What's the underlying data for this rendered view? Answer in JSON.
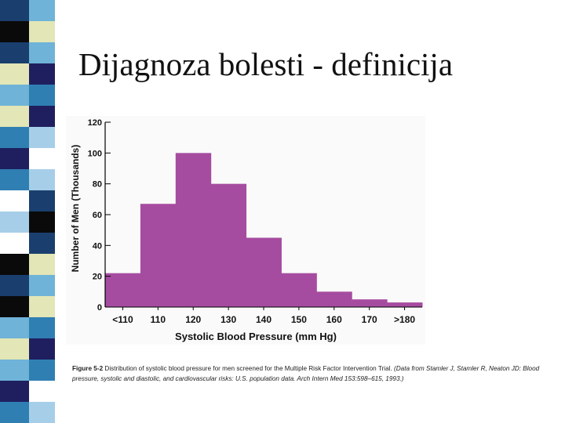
{
  "slide": {
    "title": "Dijagnoza bolesti - definicija",
    "strip_palette": [
      "#1a3f6e",
      "#e3e6b6",
      "#2f7fb3",
      "#ffffff",
      "#0a0a0a",
      "#6fb3d8",
      "#1f1f5f",
      "#a7cee8"
    ]
  },
  "chart_data": {
    "type": "bar",
    "categories": [
      "<110",
      "110",
      "120",
      "130",
      "140",
      "150",
      "160",
      "170",
      ">180"
    ],
    "values": [
      22,
      67,
      100,
      80,
      45,
      22,
      10,
      5,
      3
    ],
    "ylabel": "Number of Men (Thousands)",
    "xlabel": "Systolic Blood Pressure (mm Hg)",
    "ylim": [
      0,
      120
    ],
    "yticks": [
      0,
      20,
      40,
      60,
      80,
      100,
      120
    ],
    "bar_color": "#a64ca0",
    "grid": false
  },
  "caption": {
    "lead": "Figure 5-2",
    "text": "Distribution of systolic blood pressure for men screened for the Multiple Risk Factor Intervention Trial.",
    "citation": "(Data from Stamler J, Stamler R, Neaton JD: Blood pressure, systolic and diastolic, and cardiovascular risks: U.S. population data. Arch Intern Med 153:598–615, 1993.)"
  }
}
